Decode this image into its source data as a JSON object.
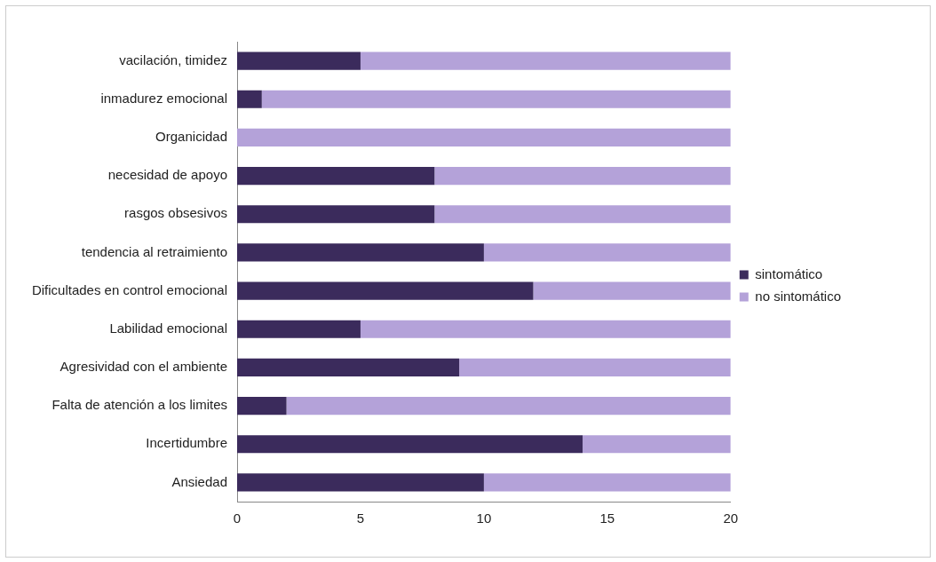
{
  "chart_data": {
    "type": "bar",
    "orientation": "horizontal",
    "stacked": true,
    "categories": [
      "vacilación, timidez",
      "inmadurez emocional",
      "Organicidad",
      "necesidad de apoyo",
      "rasgos obsesivos",
      "tendencia al retraimiento",
      "Dificultades en control emocional",
      "Labilidad emocional",
      "Agresividad con el ambiente",
      "Falta de atención a los limites",
      "Incertidumbre",
      "Ansiedad"
    ],
    "series": [
      {
        "name": "sintomático",
        "color": "#3b2b5c",
        "values": [
          5,
          1,
          0,
          8,
          8,
          10,
          12,
          5,
          9,
          2,
          14,
          10
        ]
      },
      {
        "name": "no sintomático",
        "color": "#b4a2d9",
        "values": [
          15,
          19,
          20,
          12,
          12,
          10,
          8,
          15,
          11,
          18,
          6,
          10
        ]
      }
    ],
    "xlim": [
      0,
      20
    ],
    "xticks": [
      0,
      5,
      10,
      15,
      20
    ],
    "grid": false,
    "legend": "right"
  }
}
